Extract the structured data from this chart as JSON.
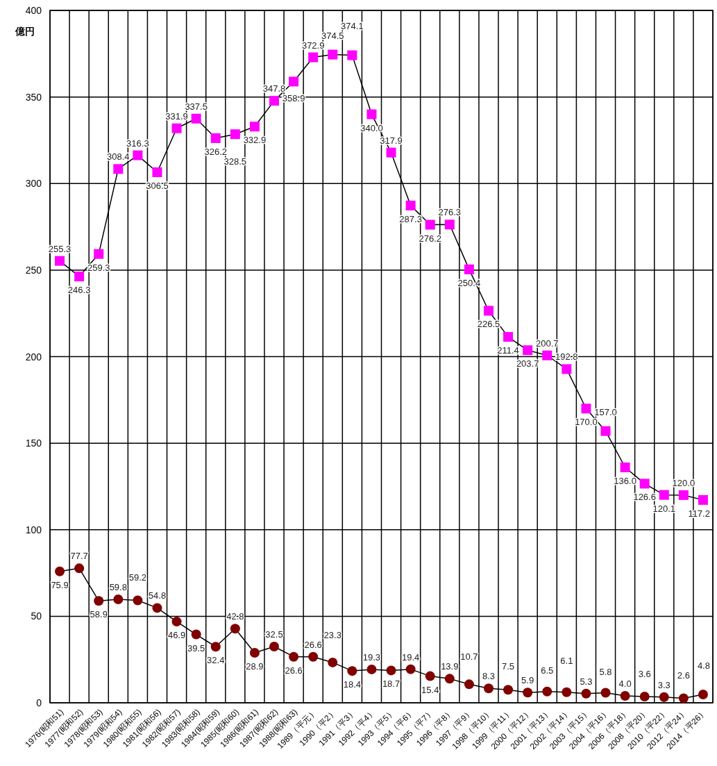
{
  "chart_data": {
    "type": "line",
    "ylabel": "億円",
    "categories": [
      "1976(昭和51)",
      "1977(昭和52)",
      "1978(昭和53)",
      "1979(昭和54)",
      "1980(昭和55)",
      "1981(昭和56)",
      "1982(昭和57)",
      "1983(昭和58)",
      "1984(昭和59)",
      "1985(昭和60)",
      "1986(昭和61)",
      "1987(昭和62)",
      "1988(昭和63)",
      "1989（平元）",
      "1990（平2）",
      "1991（平3）",
      "1992（平4）",
      "1993（平5）",
      "1994（平6）",
      "1995（平7）",
      "1996（平8）",
      "1997（平9）",
      "1998（平10）",
      "1999（平11）",
      "2000（平12）",
      "2001（平13）",
      "2002（平14）",
      "2003（平15）",
      "2004（平16）",
      "2006（平18）",
      "2008（平20）",
      "2010（平22）",
      "2012（平24）",
      "2014（平26）"
    ],
    "ylim": [
      0,
      400
    ],
    "yticks": [
      0,
      50,
      100,
      150,
      200,
      250,
      300,
      350,
      400
    ],
    "grid": true,
    "line_style": "solid",
    "series": [
      {
        "color": "#ff00ff",
        "marker": "square",
        "values": [
          255.3,
          246.3,
          259.3,
          308.4,
          316.3,
          306.5,
          331.9,
          337.5,
          326.2,
          328.5,
          332.9,
          347.8,
          358.9,
          372.9,
          374.5,
          374.1,
          340.0,
          317.9,
          287.3,
          276.2,
          276.3,
          250.4,
          226.5,
          211.4,
          203.7,
          200.7,
          192.8,
          170.0,
          157.0,
          136.0,
          126.6,
          120.1,
          120.0,
          117.2
        ],
        "value_labels": [
          "255.3",
          "246.3",
          "259.3",
          "308.4",
          "316.3",
          "306.5",
          "331.9",
          "337.5",
          "326.2",
          "328.5",
          "332.9",
          "347.8",
          "358.9",
          "372.9",
          "374.5",
          "374.1",
          "340.0",
          "317.9",
          "287.3",
          "276.2",
          "276.3",
          "250.4",
          "226.5",
          "211.4",
          "203.7",
          "200.7",
          "192.8",
          "170.0",
          "157.0",
          "136.0",
          "126.6",
          "120.1",
          "120.0",
          "117.2"
        ]
      },
      {
        "color": "#800000",
        "marker": "circle",
        "values": [
          75.9,
          77.7,
          58.9,
          59.8,
          59.2,
          54.8,
          46.9,
          39.5,
          32.4,
          42.8,
          28.9,
          32.5,
          26.6,
          26.6,
          23.3,
          18.4,
          19.3,
          18.7,
          19.4,
          15.4,
          13.9,
          10.7,
          8.3,
          7.5,
          5.9,
          6.5,
          6.1,
          5.3,
          5.8,
          4.0,
          3.6,
          3.3,
          2.6,
          4.8
        ],
        "value_labels": [
          "75.9",
          "77.7",
          "58.9",
          "59.8",
          "59.2",
          "54.8",
          "46.9",
          "39.5",
          "32.4",
          "42.8",
          "28.9",
          "32.5",
          "26.6",
          "26.6",
          "23.3",
          "18.4",
          "19.3",
          "18.7",
          "19.4",
          "15.4",
          "13.9",
          "10.7",
          "8.3",
          "7.5",
          "5.9",
          "6.5",
          "6.1",
          "5.3",
          "5.8",
          "4.0",
          "3.6",
          "3.3",
          "2.6",
          "4.8"
        ]
      }
    ]
  }
}
